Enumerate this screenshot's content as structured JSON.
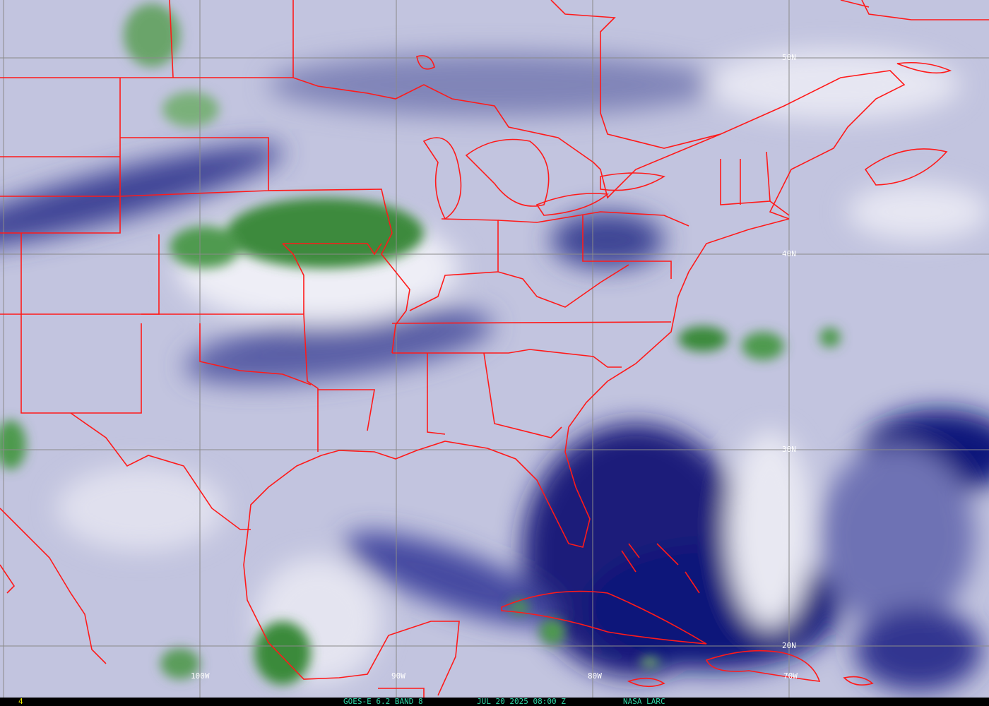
{
  "image": {
    "product": "GOES-E 6.2 BAND 8",
    "datetime": "JUL 20 2025 08:00 Z",
    "credit": "NASA LARC",
    "frame_number": "4",
    "caption_color": "#2fd6a6",
    "frame_number_color": "#e8e800",
    "border_color": "#ff1a1a",
    "grid_color": "#8a8a8a"
  },
  "grid": {
    "latitudes": [
      "50N",
      "40N",
      "30N",
      "20N"
    ],
    "longitudes": [
      "100W",
      "90W",
      "80W",
      "70W"
    ]
  }
}
